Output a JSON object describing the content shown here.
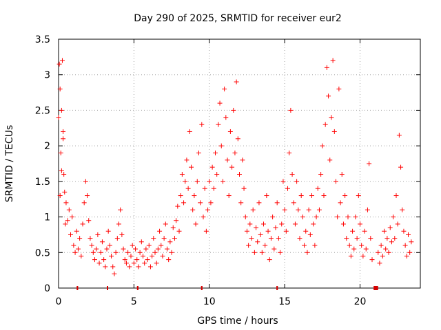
{
  "chart_data": {
    "type": "scatter",
    "title": "Day 290 of 2025, SRMTID for receiver eur2",
    "xlabel": "GPS time / hours",
    "ylabel": "SRMTID / TECUs",
    "xlim": [
      0,
      24
    ],
    "ylim": [
      0,
      3.5
    ],
    "xticks": [
      0,
      5,
      10,
      15,
      20
    ],
    "yticks": [
      0,
      0.5,
      1,
      1.5,
      2,
      2.5,
      3,
      3.5
    ],
    "xtick_labels": [
      "0",
      "5",
      "10",
      "15",
      "20"
    ],
    "ytick_labels": [
      "0",
      "0.5",
      "1",
      "1.5",
      "2",
      "2.5",
      "3",
      "3.5"
    ],
    "grid": true,
    "marker": "+",
    "color": "#ff0000",
    "series": [
      {
        "name": "SRMTID",
        "points": [
          [
            0.0,
            2.4
          ],
          [
            0.05,
            3.15
          ],
          [
            0.1,
            2.8
          ],
          [
            0.15,
            1.9
          ],
          [
            0.2,
            2.5
          ],
          [
            0.25,
            3.2
          ],
          [
            0.3,
            2.1
          ],
          [
            0.35,
            1.6
          ],
          [
            0.4,
            1.35
          ],
          [
            0.45,
            0.9
          ],
          [
            0.1,
            1.3
          ],
          [
            0.2,
            1.65
          ],
          [
            0.3,
            2.2
          ],
          [
            0.5,
            1.2
          ],
          [
            0.6,
            0.95
          ],
          [
            0.7,
            1.1
          ],
          [
            0.8,
            0.75
          ],
          [
            0.9,
            1.0
          ],
          [
            1.0,
            0.6
          ],
          [
            1.1,
            0.5
          ],
          [
            1.2,
            0.8
          ],
          [
            1.3,
            0.55
          ],
          [
            1.4,
            0.7
          ],
          [
            1.5,
            0.45
          ],
          [
            1.6,
            0.9
          ],
          [
            1.7,
            1.2
          ],
          [
            1.8,
            1.5
          ],
          [
            1.9,
            1.3
          ],
          [
            2.0,
            0.95
          ],
          [
            2.1,
            0.7
          ],
          [
            2.2,
            0.6
          ],
          [
            2.3,
            0.5
          ],
          [
            2.4,
            0.4
          ],
          [
            2.5,
            0.55
          ],
          [
            2.6,
            0.75
          ],
          [
            2.7,
            0.35
          ],
          [
            2.8,
            0.5
          ],
          [
            2.9,
            0.65
          ],
          [
            3.0,
            0.4
          ],
          [
            3.1,
            0.3
          ],
          [
            3.2,
            0.55
          ],
          [
            3.3,
            0.8
          ],
          [
            3.4,
            0.6
          ],
          [
            3.5,
            0.45
          ],
          [
            3.6,
            0.3
          ],
          [
            3.7,
            0.2
          ],
          [
            3.8,
            0.5
          ],
          [
            3.9,
            0.7
          ],
          [
            4.0,
            0.9
          ],
          [
            4.1,
            1.1
          ],
          [
            4.2,
            0.75
          ],
          [
            4.3,
            0.55
          ],
          [
            4.4,
            0.4
          ],
          [
            4.5,
            0.35
          ],
          [
            4.6,
            0.5
          ],
          [
            4.7,
            0.3
          ],
          [
            4.8,
            0.45
          ],
          [
            4.9,
            0.6
          ],
          [
            5.0,
            0.35
          ],
          [
            5.1,
            0.55
          ],
          [
            5.2,
            0.4
          ],
          [
            5.3,
            0.3
          ],
          [
            5.4,
            0.5
          ],
          [
            5.5,
            0.65
          ],
          [
            5.6,
            0.45
          ],
          [
            5.7,
            0.35
          ],
          [
            5.8,
            0.55
          ],
          [
            5.9,
            0.4
          ],
          [
            6.0,
            0.6
          ],
          [
            6.1,
            0.3
          ],
          [
            6.2,
            0.45
          ],
          [
            6.3,
            0.7
          ],
          [
            6.4,
            0.5
          ],
          [
            6.5,
            0.35
          ],
          [
            6.6,
            0.55
          ],
          [
            6.7,
            0.8
          ],
          [
            6.8,
            0.6
          ],
          [
            6.9,
            0.45
          ],
          [
            7.0,
            0.7
          ],
          [
            7.1,
            0.9
          ],
          [
            7.2,
            0.55
          ],
          [
            7.3,
            0.4
          ],
          [
            7.4,
            0.65
          ],
          [
            7.5,
            0.5
          ],
          [
            7.6,
            0.85
          ],
          [
            7.7,
            0.7
          ],
          [
            7.8,
            0.95
          ],
          [
            7.9,
            1.15
          ],
          [
            8.0,
            0.8
          ],
          [
            8.1,
            1.3
          ],
          [
            8.2,
            1.6
          ],
          [
            8.3,
            1.2
          ],
          [
            8.4,
            1.5
          ],
          [
            8.5,
            1.8
          ],
          [
            8.6,
            1.4
          ],
          [
            8.7,
            2.2
          ],
          [
            8.8,
            1.7
          ],
          [
            8.9,
            1.1
          ],
          [
            9.0,
            1.3
          ],
          [
            9.1,
            0.9
          ],
          [
            9.2,
            1.5
          ],
          [
            9.3,
            1.9
          ],
          [
            9.4,
            1.2
          ],
          [
            9.5,
            2.3
          ],
          [
            9.6,
            1.0
          ],
          [
            9.7,
            1.4
          ],
          [
            9.8,
            0.8
          ],
          [
            9.9,
            1.1
          ],
          [
            10.0,
            1.5
          ],
          [
            10.1,
            1.2
          ],
          [
            10.2,
            1.7
          ],
          [
            10.3,
            1.4
          ],
          [
            10.4,
            1.9
          ],
          [
            10.5,
            1.6
          ],
          [
            10.6,
            2.3
          ],
          [
            10.7,
            2.6
          ],
          [
            10.8,
            2.0
          ],
          [
            10.9,
            1.5
          ],
          [
            11.0,
            2.8
          ],
          [
            11.1,
            2.4
          ],
          [
            11.2,
            1.8
          ],
          [
            11.3,
            1.3
          ],
          [
            11.4,
            2.2
          ],
          [
            11.5,
            1.7
          ],
          [
            11.6,
            2.5
          ],
          [
            11.7,
            1.9
          ],
          [
            11.8,
            2.9
          ],
          [
            11.9,
            2.1
          ],
          [
            12.0,
            1.6
          ],
          [
            12.1,
            1.2
          ],
          [
            12.2,
            1.8
          ],
          [
            12.3,
            1.4
          ],
          [
            12.4,
            1.0
          ],
          [
            12.5,
            0.8
          ],
          [
            12.6,
            0.6
          ],
          [
            12.7,
            0.9
          ],
          [
            12.8,
            0.7
          ],
          [
            12.9,
            1.1
          ],
          [
            13.0,
            0.5
          ],
          [
            13.1,
            0.85
          ],
          [
            13.2,
            0.65
          ],
          [
            13.3,
            1.2
          ],
          [
            13.4,
            0.75
          ],
          [
            13.5,
            0.5
          ],
          [
            13.6,
            0.9
          ],
          [
            13.7,
            0.6
          ],
          [
            13.8,
            1.3
          ],
          [
            13.9,
            0.8
          ],
          [
            14.0,
            0.4
          ],
          [
            14.1,
            0.7
          ],
          [
            14.2,
            1.0
          ],
          [
            14.3,
            0.55
          ],
          [
            14.4,
            0.85
          ],
          [
            14.5,
            1.2
          ],
          [
            14.6,
            0.7
          ],
          [
            14.7,
            0.5
          ],
          [
            14.8,
            0.9
          ],
          [
            14.9,
            1.5
          ],
          [
            15.0,
            1.1
          ],
          [
            15.1,
            0.8
          ],
          [
            15.2,
            1.4
          ],
          [
            15.3,
            1.9
          ],
          [
            15.4,
            2.5
          ],
          [
            15.5,
            1.6
          ],
          [
            15.6,
            1.2
          ],
          [
            15.7,
            0.9
          ],
          [
            15.8,
            1.5
          ],
          [
            15.9,
            1.1
          ],
          [
            16.0,
            0.7
          ],
          [
            16.1,
            1.3
          ],
          [
            16.2,
            1.0
          ],
          [
            16.3,
            0.6
          ],
          [
            16.4,
            0.8
          ],
          [
            16.5,
            0.5
          ],
          [
            16.6,
            1.1
          ],
          [
            16.7,
            0.75
          ],
          [
            16.8,
            1.3
          ],
          [
            16.9,
            0.9
          ],
          [
            17.0,
            0.6
          ],
          [
            17.1,
            1.0
          ],
          [
            17.2,
            1.4
          ],
          [
            17.3,
            1.1
          ],
          [
            17.4,
            1.6
          ],
          [
            17.5,
            2.0
          ],
          [
            17.6,
            1.3
          ],
          [
            17.7,
            2.3
          ],
          [
            17.8,
            3.1
          ],
          [
            17.9,
            2.7
          ],
          [
            18.0,
            1.8
          ],
          [
            18.1,
            2.4
          ],
          [
            18.2,
            3.2
          ],
          [
            18.3,
            2.2
          ],
          [
            18.4,
            1.5
          ],
          [
            18.5,
            1.0
          ],
          [
            18.6,
            2.8
          ],
          [
            18.7,
            1.2
          ],
          [
            18.8,
            1.6
          ],
          [
            18.9,
            0.9
          ],
          [
            19.0,
            1.3
          ],
          [
            19.1,
            0.7
          ],
          [
            19.2,
            1.0
          ],
          [
            19.3,
            0.6
          ],
          [
            19.4,
            0.45
          ],
          [
            19.5,
            0.8
          ],
          [
            19.6,
            0.55
          ],
          [
            19.7,
            1.0
          ],
          [
            19.8,
            0.7
          ],
          [
            19.9,
            1.3
          ],
          [
            20.0,
            0.9
          ],
          [
            20.1,
            0.6
          ],
          [
            20.2,
            0.45
          ],
          [
            20.3,
            0.8
          ],
          [
            20.4,
            0.55
          ],
          [
            20.5,
            1.1
          ],
          [
            20.6,
            1.75
          ],
          [
            20.7,
            0.7
          ],
          [
            20.8,
            0.4
          ],
          [
            21.2,
            0.5
          ],
          [
            21.3,
            0.35
          ],
          [
            21.4,
            0.6
          ],
          [
            21.5,
            0.45
          ],
          [
            21.6,
            0.8
          ],
          [
            21.7,
            0.55
          ],
          [
            21.8,
            0.7
          ],
          [
            21.9,
            0.5
          ],
          [
            22.0,
            0.85
          ],
          [
            22.1,
            0.65
          ],
          [
            22.2,
            1.0
          ],
          [
            22.3,
            0.7
          ],
          [
            22.4,
            1.3
          ],
          [
            22.5,
            0.9
          ],
          [
            22.6,
            2.15
          ],
          [
            22.7,
            1.7
          ],
          [
            22.8,
            1.1
          ],
          [
            22.9,
            0.8
          ],
          [
            23.0,
            0.6
          ],
          [
            23.1,
            0.45
          ],
          [
            23.2,
            0.75
          ],
          [
            23.3,
            0.5
          ],
          [
            23.4,
            0.65
          ]
        ]
      }
    ],
    "zero_line_gaps": [
      [
        1.2,
        1.3
      ],
      [
        3.2,
        3.25
      ],
      [
        5.2,
        5.3
      ],
      [
        9.45,
        9.55
      ],
      [
        14.45,
        14.55
      ],
      [
        20.9,
        21.2
      ]
    ]
  }
}
